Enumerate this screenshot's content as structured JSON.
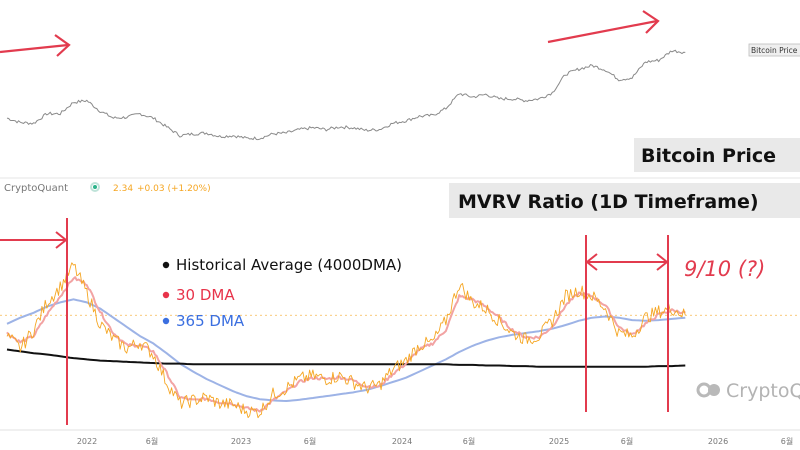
{
  "chart_data": [
    {
      "type": "line",
      "title": "Bitcoin Price",
      "legend_tag": "Bitcoin Price",
      "series": [
        {
          "x": [
            "2021-05",
            "2021-06",
            "2021-07",
            "2021-08",
            "2021-09",
            "2021-10",
            "2021-11",
            "2021-12",
            "2022-01",
            "2022-02",
            "2022-03",
            "2022-04",
            "2022-05",
            "2022-06",
            "2022-07",
            "2022-08",
            "2022-09",
            "2022-10",
            "2022-11",
            "2022-12",
            "2023-01",
            "2023-02",
            "2023-03",
            "2023-04",
            "2023-05",
            "2023-06",
            "2023-07",
            "2023-08",
            "2023-09",
            "2023-10",
            "2023-11",
            "2023-12",
            "2024-01",
            "2024-02",
            "2024-03",
            "2024-04",
            "2024-05",
            "2024-06",
            "2024-07",
            "2024-08",
            "2024-09",
            "2024-10",
            "2024-11",
            "2024-12",
            "2025-01",
            "2025-02",
            "2025-03",
            "2025-04",
            "2025-05",
            "2025-06",
            "2025-07",
            "2025-08"
          ],
          "values": [
            40,
            35,
            34,
            45,
            45,
            58,
            60,
            48,
            40,
            41,
            45,
            40,
            30,
            20,
            22,
            23,
            19,
            20,
            17,
            17,
            22,
            23,
            27,
            29,
            27,
            30,
            29,
            26,
            27,
            34,
            37,
            42,
            43,
            51,
            68,
            64,
            67,
            62,
            62,
            60,
            62,
            69,
            90,
            96,
            100,
            95,
            84,
            86,
            104,
            106,
            117,
            115
          ]
        }
      ]
    },
    {
      "type": "line",
      "title": "MVRV Ratio (1D Timeframe)",
      "source": "CryptoQuant",
      "readout": {
        "value": "2.34",
        "change": "+0.03 (+1.20%)"
      },
      "legend": [
        {
          "label": "Historical Average (4000DMA)",
          "color": "#111111"
        },
        {
          "label": "30 DMA",
          "color": "#e8334a"
        },
        {
          "label": "365 DMA",
          "color": "#3b6fe0"
        }
      ],
      "x": [
        "2021-05",
        "2021-06",
        "2021-07",
        "2021-08",
        "2021-09",
        "2021-10",
        "2021-11",
        "2021-12",
        "2022-01",
        "2022-02",
        "2022-03",
        "2022-04",
        "2022-05",
        "2022-06",
        "2022-07",
        "2022-08",
        "2022-09",
        "2022-10",
        "2022-11",
        "2022-12",
        "2023-01",
        "2023-02",
        "2023-03",
        "2023-04",
        "2023-05",
        "2023-06",
        "2023-07",
        "2023-08",
        "2023-09",
        "2023-10",
        "2023-11",
        "2023-12",
        "2024-01",
        "2024-02",
        "2024-03",
        "2024-04",
        "2024-05",
        "2024-06",
        "2024-07",
        "2024-08",
        "2024-09",
        "2024-10",
        "2024-11",
        "2024-12",
        "2025-01",
        "2025-02",
        "2025-03",
        "2025-04",
        "2025-05",
        "2025-06",
        "2025-07",
        "2025-08"
      ],
      "series": [
        {
          "name": "MVRV",
          "color": "#f5a623",
          "values": [
            2.0,
            1.8,
            2.1,
            2.55,
            2.8,
            3.15,
            2.7,
            2.2,
            1.95,
            1.8,
            1.9,
            1.7,
            1.25,
            0.9,
            0.95,
            1.0,
            0.9,
            0.88,
            0.78,
            0.76,
            1.05,
            1.15,
            1.3,
            1.35,
            1.3,
            1.35,
            1.25,
            1.15,
            1.2,
            1.45,
            1.6,
            1.85,
            1.9,
            2.25,
            2.85,
            2.55,
            2.45,
            2.25,
            2.05,
            1.95,
            2.0,
            2.25,
            2.65,
            2.75,
            2.65,
            2.45,
            2.05,
            2.0,
            2.3,
            2.4,
            2.45,
            2.34
          ]
        },
        {
          "name": "30 DMA",
          "color": "#f2a3a3",
          "values": [
            2.05,
            1.9,
            2.0,
            2.35,
            2.65,
            2.95,
            2.85,
            2.4,
            2.05,
            1.85,
            1.85,
            1.75,
            1.4,
            1.0,
            0.95,
            0.98,
            0.92,
            0.9,
            0.82,
            0.78,
            0.95,
            1.1,
            1.25,
            1.32,
            1.3,
            1.33,
            1.28,
            1.18,
            1.18,
            1.38,
            1.55,
            1.78,
            1.88,
            2.1,
            2.65,
            2.6,
            2.48,
            2.3,
            2.1,
            1.98,
            1.98,
            2.15,
            2.5,
            2.7,
            2.65,
            2.5,
            2.15,
            2.02,
            2.2,
            2.35,
            2.42,
            2.38
          ]
        },
        {
          "name": "365 DMA",
          "color": "#9db3e6",
          "values": [
            2.2,
            2.3,
            2.38,
            2.48,
            2.55,
            2.6,
            2.55,
            2.45,
            2.3,
            2.15,
            2.0,
            1.88,
            1.72,
            1.55,
            1.42,
            1.3,
            1.2,
            1.1,
            1.02,
            0.97,
            0.95,
            0.94,
            0.96,
            0.99,
            1.02,
            1.05,
            1.08,
            1.12,
            1.18,
            1.25,
            1.32,
            1.42,
            1.52,
            1.62,
            1.74,
            1.84,
            1.92,
            1.98,
            2.02,
            2.05,
            2.08,
            2.12,
            2.18,
            2.25,
            2.3,
            2.32,
            2.3,
            2.26,
            2.25,
            2.26,
            2.28,
            2.3
          ]
        },
        {
          "name": "Historical Average (4000DMA)",
          "color": "#111111",
          "values": [
            1.78,
            1.75,
            1.72,
            1.7,
            1.67,
            1.64,
            1.62,
            1.6,
            1.59,
            1.58,
            1.57,
            1.56,
            1.55,
            1.55,
            1.54,
            1.54,
            1.54,
            1.54,
            1.54,
            1.54,
            1.54,
            1.54,
            1.54,
            1.54,
            1.54,
            1.54,
            1.54,
            1.54,
            1.54,
            1.54,
            1.54,
            1.54,
            1.54,
            1.54,
            1.53,
            1.53,
            1.52,
            1.52,
            1.51,
            1.51,
            1.5,
            1.5,
            1.5,
            1.5,
            1.5,
            1.5,
            1.5,
            1.5,
            1.5,
            1.51,
            1.51,
            1.52
          ]
        }
      ],
      "ylim": [
        0.5,
        3.6
      ],
      "reference_line": 2.34
    }
  ],
  "x_axis": {
    "ticks": [
      "2022",
      "6월",
      "2023",
      "6월",
      "2024",
      "6월",
      "2025",
      "6월",
      "2026",
      "6월"
    ]
  },
  "annotations": {
    "cycle_label": "9/10 (?)",
    "watermark": "CryptoQuant"
  }
}
